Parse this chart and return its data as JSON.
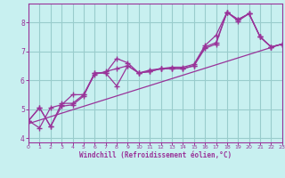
{
  "xlabel": "Windchill (Refroidissement éolien,°C)",
  "bg_color": "#c8f0f0",
  "line_color": "#993399",
  "grid_color": "#99cccc",
  "series1": {
    "x": [
      0,
      1,
      2,
      3,
      4,
      5,
      6,
      7,
      8,
      9,
      10,
      11,
      12,
      13,
      14,
      15,
      16,
      17,
      18,
      19,
      20,
      21,
      22,
      23
    ],
    "y": [
      4.6,
      5.05,
      4.4,
      5.2,
      5.2,
      5.5,
      6.25,
      6.25,
      6.75,
      6.6,
      6.25,
      6.3,
      6.4,
      6.4,
      6.4,
      6.5,
      7.15,
      7.3,
      8.35,
      8.1,
      8.3,
      7.5,
      7.15,
      7.25
    ]
  },
  "series2": {
    "x": [
      0,
      1,
      2,
      3,
      4,
      5,
      6,
      7,
      8,
      9,
      10,
      11,
      12,
      13,
      14,
      15,
      16,
      17,
      18,
      19,
      20,
      21,
      22,
      23
    ],
    "y": [
      4.6,
      5.05,
      4.4,
      5.1,
      5.15,
      5.45,
      6.25,
      6.25,
      5.8,
      6.5,
      6.25,
      6.3,
      6.4,
      6.4,
      6.4,
      6.5,
      7.1,
      7.25,
      8.35,
      8.1,
      8.3,
      7.5,
      7.15,
      7.25
    ]
  },
  "series3": {
    "x": [
      0,
      1,
      2,
      3,
      4,
      5,
      6,
      7,
      8,
      9,
      10,
      11,
      12,
      13,
      14,
      15,
      16,
      17,
      18,
      19,
      20,
      21,
      22,
      23
    ],
    "y": [
      4.6,
      4.35,
      5.05,
      5.15,
      5.5,
      5.5,
      6.2,
      6.3,
      6.4,
      6.5,
      6.25,
      6.35,
      6.4,
      6.45,
      6.45,
      6.55,
      7.2,
      7.55,
      8.35,
      8.05,
      8.3,
      7.5,
      7.15,
      7.25
    ]
  },
  "trend": {
    "x": [
      0,
      23
    ],
    "y": [
      4.5,
      7.25
    ]
  },
  "xlim": [
    0,
    23
  ],
  "ylim": [
    3.85,
    8.65
  ],
  "yticks": [
    4,
    5,
    6,
    7,
    8
  ],
  "xticks": [
    0,
    1,
    2,
    3,
    4,
    5,
    6,
    7,
    8,
    9,
    10,
    11,
    12,
    13,
    14,
    15,
    16,
    17,
    18,
    19,
    20,
    21,
    22,
    23
  ]
}
